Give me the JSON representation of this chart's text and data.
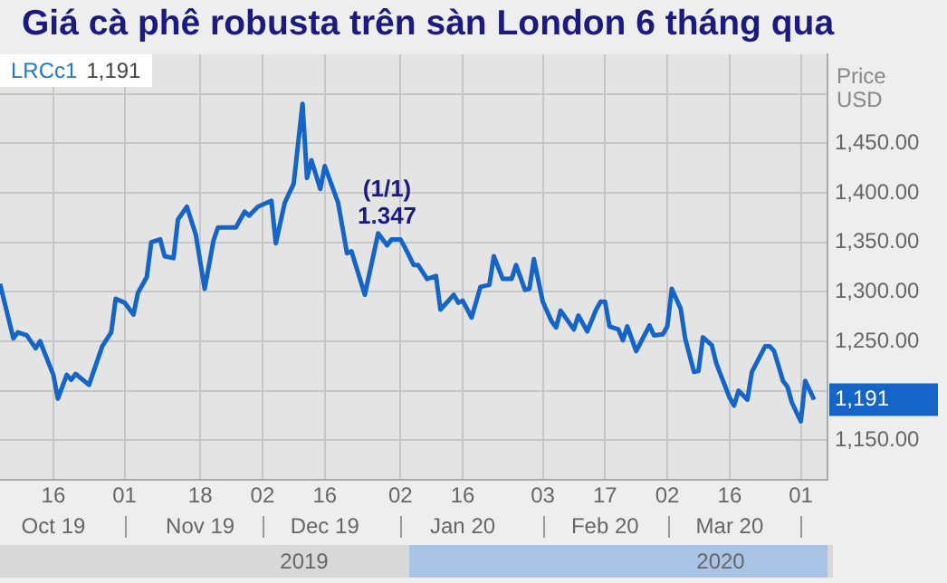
{
  "chart_data": {
    "type": "line",
    "title": "Giá cà phê robusta trên sàn London 6 tháng qua",
    "ylabel": "Price\nUSD",
    "color": "#1565c8",
    "grid": true,
    "xlim": [
      "2019-10-04",
      "2020-04-07"
    ],
    "ylim": [
      1110,
      1540
    ],
    "xticks": [
      {
        "value": "2019-10-16",
        "label": "16"
      },
      {
        "value": "2019-11-01",
        "label": "01"
      },
      {
        "value": "2019-11-18",
        "label": "18"
      },
      {
        "value": "2019-12-02",
        "label": "02"
      },
      {
        "value": "2019-12-16",
        "label": "16"
      },
      {
        "value": "2020-01-02",
        "label": "02"
      },
      {
        "value": "2020-01-16",
        "label": "16"
      },
      {
        "value": "2020-02-03",
        "label": "03"
      },
      {
        "value": "2020-02-17",
        "label": "17"
      },
      {
        "value": "2020-03-02",
        "label": "02"
      },
      {
        "value": "2020-03-16",
        "label": "16"
      },
      {
        "value": "2020-04-01",
        "label": "01"
      }
    ],
    "yticks": [
      {
        "value": 1150,
        "label": "1,150.00"
      },
      {
        "value": 1200,
        "label": null
      },
      {
        "value": 1250,
        "label": "1,250.00"
      },
      {
        "value": 1300,
        "label": "1,300.00"
      },
      {
        "value": 1350,
        "label": "1,350.00"
      },
      {
        "value": 1400,
        "label": "1,400.00"
      },
      {
        "value": 1450,
        "label": "1,450.00"
      },
      {
        "value": 1500,
        "label": null
      }
    ],
    "x": [
      "2019-10-04",
      "2019-10-07",
      "2019-10-08",
      "2019-10-10",
      "2019-10-12",
      "2019-10-13",
      "2019-10-16",
      "2019-10-17",
      "2019-10-19",
      "2019-10-20",
      "2019-10-21",
      "2019-10-24",
      "2019-10-25",
      "2019-10-27",
      "2019-10-29",
      "2019-10-30",
      "2019-11-01",
      "2019-11-03",
      "2019-11-04",
      "2019-11-06",
      "2019-11-07",
      "2019-11-09",
      "2019-11-10",
      "2019-11-12",
      "2019-11-13",
      "2019-11-15",
      "2019-11-17",
      "2019-11-19",
      "2019-11-21",
      "2019-11-22",
      "2019-11-26",
      "2019-11-28",
      "2019-11-29",
      "2019-12-01",
      "2019-12-04",
      "2019-12-05",
      "2019-12-07",
      "2019-12-09",
      "2019-12-11",
      "2019-12-12",
      "2019-12-13",
      "2019-12-15",
      "2019-12-16",
      "2019-12-19",
      "2019-12-21",
      "2019-12-22",
      "2019-12-25",
      "2019-12-28",
      "2019-12-30",
      "2019-12-31",
      "2020-01-02",
      "2020-01-03",
      "2020-01-05",
      "2020-01-06",
      "2020-01-08",
      "2020-01-10",
      "2020-01-11",
      "2020-01-14",
      "2020-01-15",
      "2020-01-16",
      "2020-01-18",
      "2020-01-20",
      "2020-01-22",
      "2020-01-23",
      "2020-01-25",
      "2020-01-27",
      "2020-01-28",
      "2020-01-30",
      "2020-01-31",
      "2020-02-01",
      "2020-02-03",
      "2020-02-05",
      "2020-02-06",
      "2020-02-07",
      "2020-02-10",
      "2020-02-11",
      "2020-02-13",
      "2020-02-15",
      "2020-02-16",
      "2020-02-17",
      "2020-02-18",
      "2020-02-20",
      "2020-02-21",
      "2020-02-22",
      "2020-02-24",
      "2020-02-27",
      "2020-02-28",
      "2020-03-01",
      "2020-03-02",
      "2020-03-03",
      "2020-03-05",
      "2020-03-06",
      "2020-03-08",
      "2020-03-09",
      "2020-03-10",
      "2020-03-12",
      "2020-03-13",
      "2020-03-14",
      "2020-03-16",
      "2020-03-17",
      "2020-03-18",
      "2020-03-20",
      "2020-03-21",
      "2020-03-24",
      "2020-03-25",
      "2020-03-26",
      "2020-03-28",
      "2020-03-29",
      "2020-03-30",
      "2020-04-01",
      "2020-04-02",
      "2020-04-04"
    ],
    "values": [
      1308,
      1253,
      1259,
      1256,
      1243,
      1250,
      1216,
      1192,
      1216,
      1211,
      1217,
      1206,
      1219,
      1245,
      1259,
      1293,
      1289,
      1277,
      1299,
      1315,
      1350,
      1353,
      1336,
      1334,
      1373,
      1386,
      1358,
      1303,
      1352,
      1365,
      1365,
      1381,
      1377,
      1386,
      1392,
      1349,
      1390,
      1409,
      1490,
      1415,
      1433,
      1404,
      1427,
      1390,
      1339,
      1341,
      1297,
      1359,
      1347,
      1353,
      1353,
      1345,
      1327,
      1327,
      1313,
      1316,
      1282,
      1297,
      1289,
      1291,
      1274,
      1305,
      1307,
      1336,
      1313,
      1313,
      1327,
      1302,
      1303,
      1333,
      1290,
      1270,
      1264,
      1281,
      1262,
      1276,
      1260,
      1282,
      1290,
      1290,
      1265,
      1262,
      1251,
      1265,
      1240,
      1266,
      1256,
      1257,
      1265,
      1303,
      1283,
      1253,
      1219,
      1220,
      1254,
      1246,
      1228,
      1216,
      1193,
      1185,
      1200,
      1191,
      1219,
      1245,
      1245,
      1240,
      1210,
      1204,
      1188,
      1169,
      1210,
      1191
    ],
    "annotations": [
      "LRCc1",
      "1,191",
      {
        "text": "(1/1)\n1.347",
        "x": "2019-12-30",
        "y": 1347
      },
      "1,191",
      "Oct 19",
      "Nov 19",
      "Dec 19",
      "Jan 20",
      "Feb 20",
      "Mar 20",
      "2019",
      "2020"
    ]
  }
}
